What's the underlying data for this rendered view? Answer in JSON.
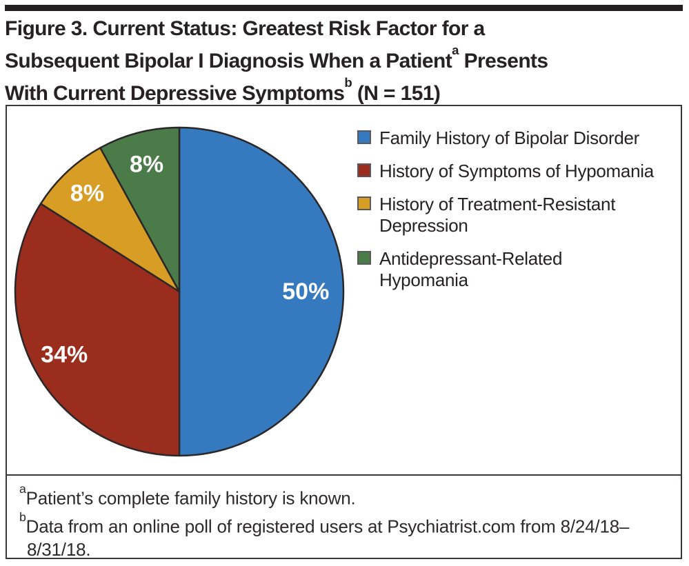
{
  "figure": {
    "title_lines": [
      {
        "pre": "Figure 3. Current Status: Greatest Risk Factor for a",
        "sup": "",
        "post": ""
      },
      {
        "pre": "Subsequent Bipolar I Diagnosis When a Patient",
        "sup": "a",
        "post": " Presents"
      },
      {
        "pre": "With Current Depressive Symptoms",
        "sup": "b",
        "post": " (N = 151)"
      }
    ],
    "footnotes": [
      {
        "sup": "a",
        "text": "Patient’s complete family history is known."
      },
      {
        "sup": "b",
        "text": "Data from an online poll of registered users at Psychiatrist.com from 8/24/18–8/31/18."
      }
    ]
  },
  "chart_data": {
    "type": "pie",
    "title": "Figure 3. Current Status: Greatest Risk Factor for a Subsequent Bipolar I Diagnosis When a Patient Presents With Current Depressive Symptoms (N = 151)",
    "n_label": "N = 151",
    "start_angle_deg": 0,
    "direction": "clockwise",
    "legend_position": "right",
    "stroke_color": "#2B2627",
    "data_label_color": "#FFFFFF",
    "slices": [
      {
        "label": "Family History of Bipolar Disorder",
        "legend_lines": [
          "Family History of Bipolar Disorder"
        ],
        "value": 50,
        "data_label": "50%",
        "color": "#3579BE",
        "label_r": 0.77
      },
      {
        "label": "History of Symptoms of Hypomania",
        "legend_lines": [
          "History of Symptoms of Hypomania"
        ],
        "value": 34,
        "data_label": "34%",
        "color": "#9B2D1E",
        "label_r": 0.8
      },
      {
        "label": "History of Treatment-Resistant Depression",
        "legend_lines": [
          "History of Treatment-Resistant",
          "Depression"
        ],
        "value": 8,
        "data_label": "8%",
        "color": "#D89D24",
        "label_r": 0.82
      },
      {
        "label": "Antidepressant-Related Hypomania",
        "legend_lines": [
          "Antidepressant-Related",
          "Hypomania"
        ],
        "value": 8,
        "data_label": "8%",
        "color": "#4B7B49",
        "label_r": 0.8
      }
    ]
  }
}
